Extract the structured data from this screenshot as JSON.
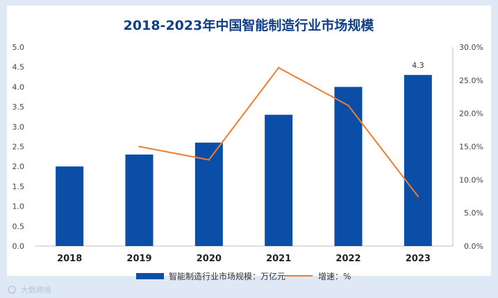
{
  "chart_data": {
    "type": "bar",
    "title": "2018-2023年中国智能制造行业市场规模",
    "categories": [
      "2018",
      "2019",
      "2020",
      "2021",
      "2022",
      "2023"
    ],
    "series": [
      {
        "name": "智能制造行业市场规模：万亿元",
        "type": "bar",
        "axis": "left",
        "values": [
          2.0,
          2.3,
          2.6,
          3.3,
          4.0,
          4.3
        ]
      },
      {
        "name": "增速：%",
        "type": "line",
        "axis": "right",
        "values": [
          null,
          15.0,
          13.0,
          26.9,
          21.2,
          7.5
        ]
      }
    ],
    "data_labels": [
      {
        "category": "2023",
        "text": "4.3"
      }
    ],
    "ylim_left": [
      0,
      5
    ],
    "ylim_right": [
      0,
      30
    ],
    "left_ticks": [
      "0.0",
      "0.5",
      "1.0",
      "1.5",
      "2.0",
      "2.5",
      "3.0",
      "3.5",
      "4.0",
      "4.5",
      "5.0"
    ],
    "right_ticks": [
      "0.0%",
      "5.0%",
      "10.0%",
      "15.0%",
      "20.0%",
      "25.0%",
      "30.0%"
    ],
    "legend_position": "bottom",
    "colors": {
      "bar": "#0a4ea8",
      "line": "#ec7d31",
      "title": "#0f3f87",
      "plot_bg": "#ffffff",
      "page_bg": "#dfe9f5"
    }
  },
  "watermark": {
    "text": "大数跨境"
  }
}
